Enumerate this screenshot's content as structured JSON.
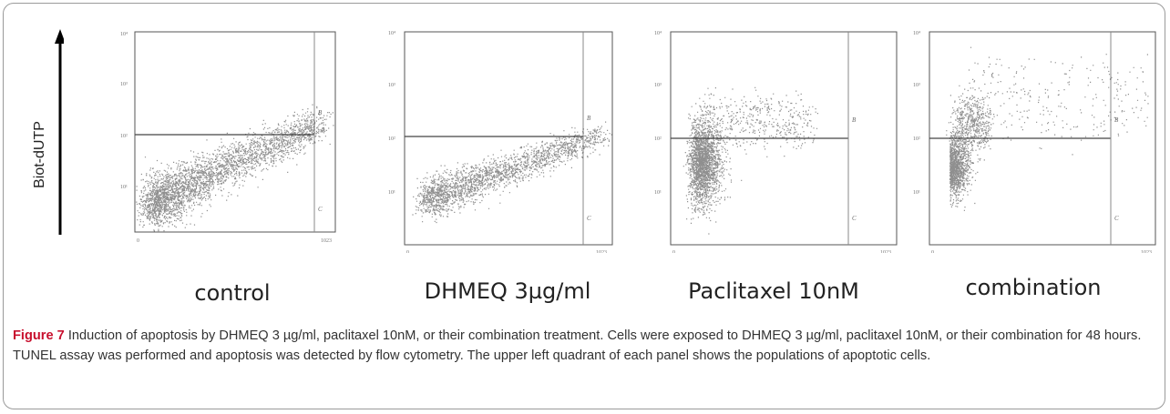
{
  "y_axis_label": "Biot-dUTP",
  "panels": [
    {
      "label": "control"
    },
    {
      "label": "DHMEQ 3µg/ml"
    },
    {
      "label": "Paclitaxel 10nM"
    },
    {
      "label": "combination"
    }
  ],
  "caption": {
    "figure_label": "Figure 7",
    "text": "Induction of apoptosis by DHMEQ 3 µg/ml, paclitaxel 10nM, or their combination treatment. Cells were exposed to DHMEQ 3 µg/ml, paclitaxel 10nM, or their combination for 48 hours. TUNEL assay was performed and apoptosis was detected by flow cytometry. The upper left quadrant of each panel shows the populations of apoptotic cells."
  }
}
